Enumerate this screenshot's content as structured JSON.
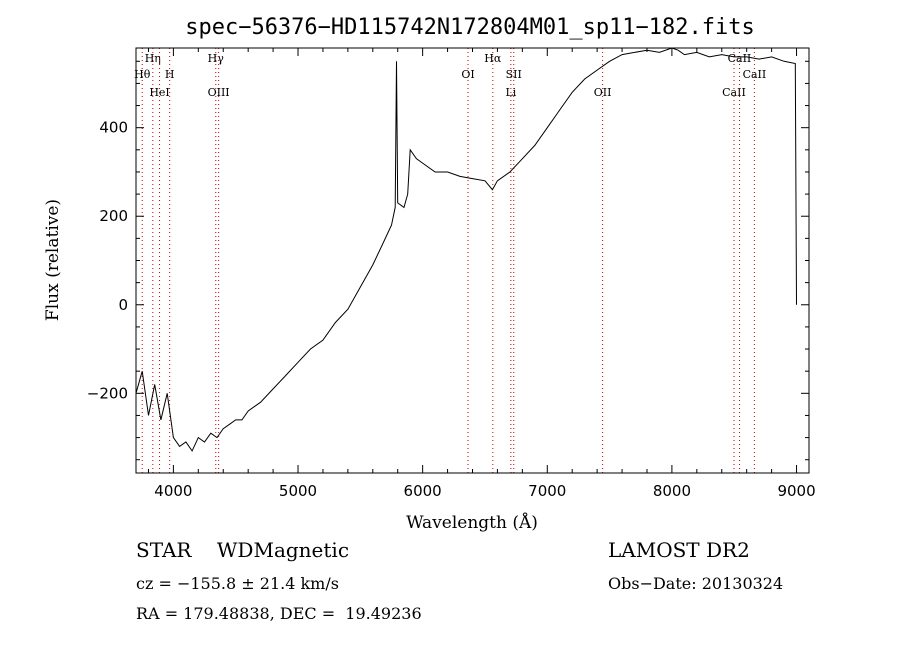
{
  "chart_data": {
    "type": "line",
    "title": "spec−56376−HD115742N172804M01_sp11−182.fits",
    "xlabel": "Wavelength (Å)",
    "ylabel": "Flux (relative)",
    "xlim": [
      3700,
      9100
    ],
    "ylim": [
      -380,
      580
    ],
    "x_ticks": [
      4000,
      5000,
      6000,
      7000,
      8000,
      9000
    ],
    "y_ticks": [
      -200,
      0,
      200,
      400
    ],
    "grid": false,
    "line_color": "#000000",
    "marker_color": "#cc0000",
    "series": [
      {
        "x": [
          3700,
          3750,
          3800,
          3850,
          3900,
          3950,
          4000,
          4050,
          4100,
          4150,
          4200,
          4250,
          4300,
          4350,
          4400,
          4450,
          4500,
          4550,
          4600,
          4700,
          4800,
          4900,
          5000,
          5100,
          5200,
          5300,
          5400,
          5500,
          5600,
          5700,
          5750,
          5780,
          5790,
          5800,
          5850,
          5880,
          5900,
          5950,
          6000,
          6100,
          6200,
          6300,
          6400,
          6500,
          6560,
          6600,
          6700,
          6800,
          6900,
          7000,
          7100,
          7200,
          7300,
          7400,
          7500,
          7600,
          7700,
          7800,
          7900,
          8000,
          8050,
          8100,
          8200,
          8300,
          8400,
          8500,
          8600,
          8700,
          8800,
          8900,
          8990,
          9000
        ],
        "values": [
          -200,
          -150,
          -250,
          -180,
          -260,
          -200,
          -300,
          -320,
          -310,
          -330,
          -300,
          -310,
          -290,
          -300,
          -280,
          -270,
          -260,
          -260,
          -240,
          -220,
          -190,
          -160,
          -130,
          -100,
          -80,
          -40,
          -10,
          40,
          90,
          150,
          180,
          220,
          550,
          230,
          220,
          250,
          350,
          330,
          320,
          300,
          300,
          290,
          285,
          280,
          260,
          280,
          300,
          330,
          360,
          400,
          440,
          480,
          510,
          530,
          550,
          565,
          570,
          575,
          570,
          580,
          575,
          565,
          570,
          560,
          565,
          560,
          560,
          555,
          560,
          550,
          545,
          0
        ]
      }
    ],
    "line_markers": [
      {
        "x": 3750,
        "label": "Hθ",
        "row": 2
      },
      {
        "x": 3835,
        "label": "Hη",
        "row": 1
      },
      {
        "x": 3889,
        "label": "HeI",
        "row": 3
      },
      {
        "x": 3970,
        "label": "H",
        "row": 2
      },
      {
        "x": 4340,
        "label": "Hγ",
        "row": 1
      },
      {
        "x": 4363,
        "label": "OIII",
        "row": 3
      },
      {
        "x": 6364,
        "label": "OI",
        "row": 2
      },
      {
        "x": 6563,
        "label": "Hα",
        "row": 1
      },
      {
        "x": 6708,
        "label": "Li",
        "row": 3
      },
      {
        "x": 6731,
        "label": "SII",
        "row": 2
      },
      {
        "x": 7444,
        "label": "OII",
        "row": 3
      },
      {
        "x": 8498,
        "label": "CaII",
        "row": 3
      },
      {
        "x": 8542,
        "label": "CaII",
        "row": 1
      },
      {
        "x": 8662,
        "label": "CaII",
        "row": 2
      }
    ]
  },
  "info": {
    "star_type": "STAR    WDMagnetic",
    "survey": "LAMOST DR2",
    "cz_text": "cz = −155.8 ± 21.4 km/s",
    "obs_date": "Obs−Date: 20130324",
    "radec": "RA = 179.48838, DEC =  19.49236"
  }
}
